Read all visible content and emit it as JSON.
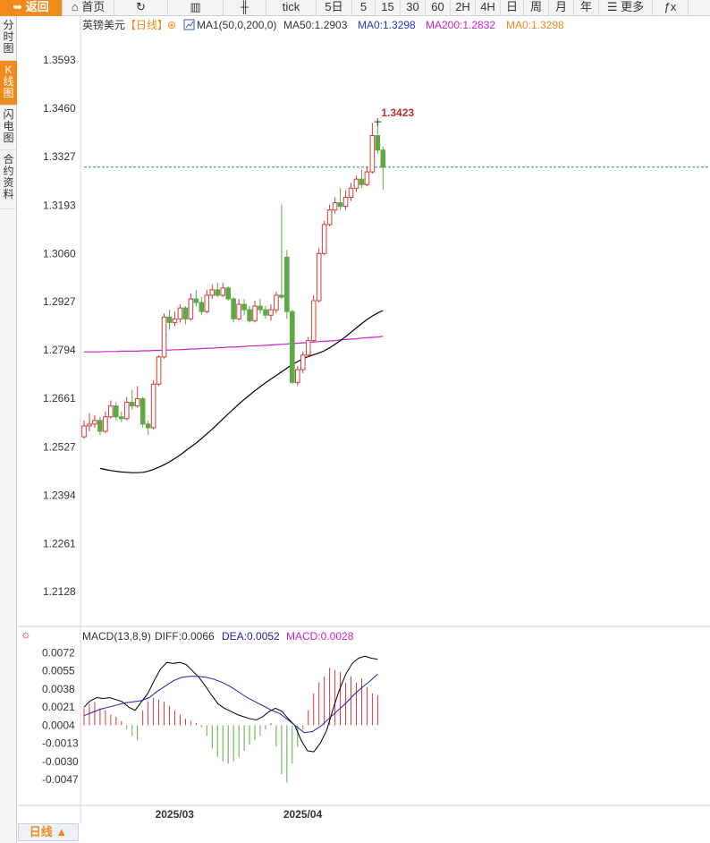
{
  "toolbar": {
    "items": [
      {
        "key": "back",
        "label": "返回",
        "icon": "back-arrow-icon"
      },
      {
        "key": "home",
        "label": "首页",
        "icon": "home-icon"
      },
      {
        "key": "refresh",
        "label": "",
        "icon": "refresh-icon"
      },
      {
        "key": "indicator",
        "label": "",
        "icon": "bar-chart-icon"
      },
      {
        "key": "kline",
        "label": "",
        "icon": "candlestick-icon"
      },
      {
        "key": "tick",
        "label": "tick"
      },
      {
        "key": "5d",
        "label": "5日"
      },
      {
        "key": "5",
        "label": "5"
      },
      {
        "key": "15",
        "label": "15"
      },
      {
        "key": "30",
        "label": "30"
      },
      {
        "key": "60",
        "label": "60"
      },
      {
        "key": "2h",
        "label": "2H"
      },
      {
        "key": "4h",
        "label": "4H"
      },
      {
        "key": "day",
        "label": "日"
      },
      {
        "key": "week",
        "label": "周"
      },
      {
        "key": "month",
        "label": "月"
      },
      {
        "key": "year",
        "label": "年"
      },
      {
        "key": "more",
        "label": "更多",
        "icon": "menu-icon"
      },
      {
        "key": "fx",
        "label": "ƒx"
      }
    ]
  },
  "sidebar": {
    "items": [
      {
        "label": "分时图",
        "active": false
      },
      {
        "label": "K线图",
        "active": true
      },
      {
        "label": "闪电图",
        "active": false
      },
      {
        "label": "合约资料",
        "active": false
      }
    ]
  },
  "header": {
    "symbol": "英镑美元",
    "period": "【日线】",
    "indicator_name": "MA1(50,0,200,0)",
    "ma50_label": "MA50:1.2903",
    "ma0_label": "MA0:1.3298",
    "ma200_label": "MA200:1.2832",
    "ma0b_label": "MA0:1.3298"
  },
  "macd_header": {
    "name": "MACD(13,8,9)",
    "diff": "DIFF:0.0066",
    "dea": "DEA:0.0052",
    "macd": "MACD:0.0028"
  },
  "bottom_tab": {
    "label": "日线 ▲"
  },
  "colors": {
    "up": "#d23b3b",
    "down": "#5da946",
    "ma50": "#000000",
    "ma200": "#cc22cc",
    "last_price": "#2a7ab8",
    "accent": "#f08a1c",
    "dea": "#2222aa",
    "macd_label": "#cc22cc"
  },
  "chart_data": {
    "type": "candlestick",
    "title": "英镑美元【日线】",
    "y_ticks": [
      1.3593,
      1.346,
      1.3327,
      1.3193,
      1.306,
      1.2927,
      1.2794,
      1.2661,
      1.2527,
      1.2394,
      1.2261,
      1.2128
    ],
    "ylim": [
      1.2062,
      1.366
    ],
    "x_labels": [
      {
        "index": 14,
        "label": "2025/03"
      },
      {
        "index": 38,
        "label": "2025/04"
      }
    ],
    "high_annotation": {
      "index": 55,
      "value": 1.3423,
      "label": "1.3423"
    },
    "last_price": 1.3298,
    "candles": [
      [
        1.2555,
        1.2585,
        1.26,
        1.255
      ],
      [
        1.2585,
        1.259,
        1.262,
        1.257
      ],
      [
        1.259,
        1.26,
        1.2615,
        1.258
      ],
      [
        1.26,
        1.257,
        1.261,
        1.256
      ],
      [
        1.257,
        1.261,
        1.2625,
        1.2565
      ],
      [
        1.261,
        1.264,
        1.2655,
        1.2605
      ],
      [
        1.264,
        1.261,
        1.265,
        1.26
      ],
      [
        1.261,
        1.2605,
        1.2625,
        1.2595
      ],
      [
        1.2605,
        1.265,
        1.2665,
        1.26
      ],
      [
        1.265,
        1.264,
        1.2685,
        1.263
      ],
      [
        1.264,
        1.266,
        1.2695,
        1.2635
      ],
      [
        1.266,
        1.259,
        1.2665,
        1.258
      ],
      [
        1.259,
        1.258,
        1.26,
        1.256
      ],
      [
        1.258,
        1.27,
        1.271,
        1.2575
      ],
      [
        1.27,
        1.2775,
        1.278,
        1.2695
      ],
      [
        1.2775,
        1.2885,
        1.2895,
        1.277
      ],
      [
        1.2885,
        1.287,
        1.2905,
        1.285
      ],
      [
        1.287,
        1.288,
        1.29,
        1.286
      ],
      [
        1.288,
        1.291,
        1.292,
        1.287
      ],
      [
        1.291,
        1.288,
        1.2915,
        1.2865
      ],
      [
        1.288,
        1.2935,
        1.295,
        1.2875
      ],
      [
        1.2935,
        1.2925,
        1.296,
        1.2915
      ],
      [
        1.2925,
        1.29,
        1.294,
        1.289
      ],
      [
        1.29,
        1.2945,
        1.296,
        1.2895
      ],
      [
        1.2945,
        1.296,
        1.2975,
        1.2935
      ],
      [
        1.296,
        1.2945,
        1.298,
        1.294
      ],
      [
        1.2945,
        1.2965,
        1.298,
        1.294
      ],
      [
        1.2965,
        1.2935,
        1.297,
        1.293
      ],
      [
        1.2935,
        1.288,
        1.294,
        1.287
      ],
      [
        1.288,
        1.292,
        1.2935,
        1.2875
      ],
      [
        1.292,
        1.2905,
        1.2935,
        1.289
      ],
      [
        1.2905,
        1.2875,
        1.2915,
        1.287
      ],
      [
        1.2875,
        1.2915,
        1.293,
        1.287
      ],
      [
        1.2915,
        1.2905,
        1.2935,
        1.2895
      ],
      [
        1.2905,
        1.289,
        1.2915,
        1.288
      ],
      [
        1.289,
        1.2905,
        1.292,
        1.2875
      ],
      [
        1.2905,
        1.2945,
        1.2955,
        1.2895
      ],
      [
        1.2945,
        1.294,
        1.3195,
        1.2935
      ],
      [
        1.305,
        1.29,
        1.307,
        1.288
      ],
      [
        1.29,
        1.2705,
        1.2905,
        1.27
      ],
      [
        1.2705,
        1.274,
        1.275,
        1.2695
      ],
      [
        1.274,
        1.278,
        1.279,
        1.273
      ],
      [
        1.278,
        1.282,
        1.283,
        1.2775
      ],
      [
        1.282,
        1.293,
        1.2945,
        1.2815
      ],
      [
        1.293,
        1.306,
        1.3075,
        1.2925
      ],
      [
        1.306,
        1.314,
        1.315,
        1.3055
      ],
      [
        1.314,
        1.318,
        1.3195,
        1.3135
      ],
      [
        1.318,
        1.32,
        1.3215,
        1.317
      ],
      [
        1.32,
        1.319,
        1.324,
        1.318
      ],
      [
        1.319,
        1.3215,
        1.3235,
        1.318
      ],
      [
        1.3215,
        1.324,
        1.3255,
        1.3205
      ],
      [
        1.324,
        1.3265,
        1.3275,
        1.323
      ],
      [
        1.3265,
        1.325,
        1.329,
        1.324
      ],
      [
        1.325,
        1.3285,
        1.33,
        1.3245
      ],
      [
        1.3285,
        1.3385,
        1.342,
        1.328
      ],
      [
        1.3385,
        1.3345,
        1.3423,
        1.3335
      ],
      [
        1.3345,
        1.3298,
        1.3355,
        1.3235
      ]
    ],
    "ma50": [
      1.2468,
      1.2465,
      1.2462,
      1.246,
      1.2458,
      1.2457,
      1.2456,
      1.2456,
      1.2457,
      1.246,
      1.2465,
      1.2471,
      1.2478,
      1.2486,
      1.2495,
      1.2505,
      1.2516,
      1.2527,
      1.2538,
      1.255,
      1.2563,
      1.2576,
      1.259,
      1.2604,
      1.2618,
      1.2632,
      1.2645,
      1.2658,
      1.267,
      1.2682,
      1.2693,
      1.2704,
      1.2714,
      1.2724,
      1.2734,
      1.2744,
      1.2754,
      1.2762,
      1.277,
      1.2776,
      1.2781,
      1.2786,
      1.2792,
      1.28,
      1.281,
      1.282,
      1.2831,
      1.2843,
      1.2855,
      1.2867,
      1.2878,
      1.2888,
      1.2896,
      1.2903
    ],
    "ma50_start_index": 3,
    "ma200": [
      1.2789,
      1.2789,
      1.2789,
      1.2789,
      1.279,
      1.279,
      1.279,
      1.2791,
      1.2791,
      1.2791,
      1.2791,
      1.2792,
      1.2792,
      1.2793,
      1.2793,
      1.2794,
      1.2794,
      1.2795,
      1.2795,
      1.2796,
      1.2797,
      1.2797,
      1.2798,
      1.2799,
      1.2799,
      1.28,
      1.2801,
      1.2802,
      1.2802,
      1.2803,
      1.2804,
      1.2805,
      1.2806,
      1.2806,
      1.2807,
      1.2808,
      1.2809,
      1.281,
      1.2811,
      1.2812,
      1.2813,
      1.2814,
      1.2815,
      1.2816,
      1.2817,
      1.2818,
      1.2819,
      1.282,
      1.2822,
      1.2823,
      1.2824,
      1.2825,
      1.2827,
      1.2828,
      1.2829,
      1.283,
      1.2832
    ],
    "macd_ticks": [
      0.0072,
      0.0055,
      0.0038,
      0.0021,
      0.0004,
      -0.0013,
      -0.003,
      -0.0047
    ],
    "macd_ylim": [
      -0.0068,
      0.008
    ],
    "diff": [
      0.0021,
      0.0027,
      0.003,
      0.0029,
      0.003,
      0.0028,
      0.0026,
      0.0021,
      0.0018,
      0.0026,
      0.0034,
      0.0046,
      0.0057,
      0.0063,
      0.0062,
      0.0063,
      0.0061,
      0.0055,
      0.0049,
      0.0041,
      0.0032,
      0.0024,
      0.002,
      0.0017,
      0.0014,
      0.0012,
      0.001,
      0.0009,
      0.0012,
      0.0017,
      0.002,
      0.0017,
      0.001,
      0.0004,
      -0.001,
      -0.002,
      -0.0021,
      -0.0013,
      -0.0001,
      0.0019,
      0.0037,
      0.0052,
      0.0062,
      0.0067,
      0.0069,
      0.0067,
      0.0066
    ],
    "diff_start_index": 0,
    "dea": [
      0.0013,
      0.0016,
      0.0019,
      0.0021,
      0.0023,
      0.0025,
      0.0026,
      0.0027,
      0.003,
      0.0036,
      0.0041,
      0.0046,
      0.0049,
      0.005,
      0.005,
      0.0049,
      0.0047,
      0.0044,
      0.004,
      0.0035,
      0.003,
      0.0026,
      0.0022,
      0.0018,
      0.0015,
      0.0009,
      0.0003,
      -0.0003,
      -0.0002,
      0.0003,
      0.001,
      0.0017,
      0.0024,
      0.0032,
      0.0039,
      0.0045,
      0.0052
    ],
    "dea_start_index": 0,
    "hist": [
      0.0016,
      0.002,
      0.0022,
      0.0016,
      0.0014,
      0.001,
      0.0008,
      0.0004,
      -0.0004,
      -0.001,
      -0.0014,
      0.0014,
      0.0022,
      0.0026,
      0.0024,
      0.0022,
      0.0018,
      0.0014,
      0.001,
      0.0006,
      0.0004,
      0.0002,
      -0.0002,
      -0.001,
      -0.0022,
      -0.003,
      -0.0034,
      -0.0036,
      -0.0034,
      -0.003,
      -0.0024,
      -0.0018,
      -0.0014,
      -0.001,
      -0.0004,
      0.0002,
      -0.002,
      -0.0046,
      -0.0054,
      -0.0036,
      -0.002,
      -0.0004,
      0.0014,
      0.003,
      0.004,
      0.0046,
      0.0054,
      0.0052,
      0.005,
      0.004,
      0.0046,
      0.004,
      0.0044,
      0.0036,
      0.003,
      0.0028
    ],
    "hist_start_index": 0,
    "macd_x_scale": 0.6,
    "macd_x_offset": 0
  }
}
